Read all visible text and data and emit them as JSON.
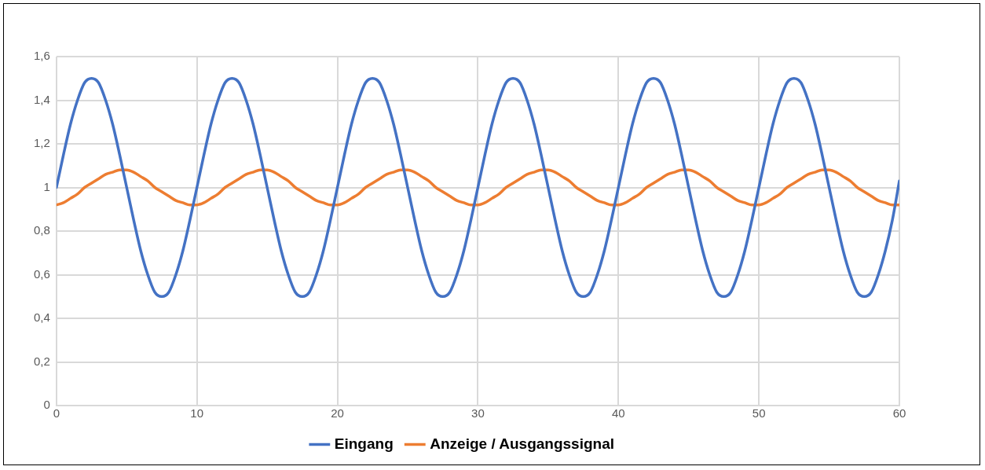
{
  "chart_data": {
    "type": "line",
    "x": [
      0,
      0.5,
      1,
      1.5,
      2,
      2.5,
      3,
      3.5,
      4,
      4.5,
      5,
      5.5,
      6,
      6.5,
      7,
      7.5,
      8,
      8.5,
      9,
      9.5,
      10,
      10.5,
      11,
      11.5,
      12,
      12.5,
      13,
      13.5,
      14,
      14.5,
      15,
      15.5,
      16,
      16.5,
      17,
      17.5,
      18,
      18.5,
      19,
      19.5,
      20,
      20.5,
      21,
      21.5,
      22,
      22.5,
      23,
      23.5,
      24,
      24.5,
      25,
      25.5,
      26,
      26.5,
      27,
      27.5,
      28,
      28.5,
      29,
      29.5,
      30,
      30.5,
      31,
      31.5,
      32,
      32.5,
      33,
      33.5,
      34,
      34.5,
      35,
      35.5,
      36,
      36.5,
      37,
      37.5,
      38,
      38.5,
      39,
      39.5,
      40,
      40.5,
      41,
      41.5,
      42,
      42.5,
      43,
      43.5,
      44,
      44.5,
      45,
      45.5,
      46,
      46.5,
      47,
      47.5,
      48,
      48.5,
      49,
      49.5,
      50,
      50.5,
      51,
      51.5,
      52,
      52.5,
      53,
      53.5,
      54,
      54.5,
      55,
      55.5,
      56,
      56.5,
      57,
      57.5,
      58,
      58.5,
      59,
      59.5,
      60
    ],
    "series": [
      {
        "name": "Eingang",
        "color": "#4472c4",
        "values": [
          1,
          1.15,
          1.29,
          1.4,
          1.48,
          1.5,
          1.48,
          1.4,
          1.29,
          1.15,
          1,
          0.85,
          0.71,
          0.6,
          0.52,
          0.5,
          0.52,
          0.6,
          0.71,
          0.85,
          1,
          1.15,
          1.29,
          1.4,
          1.48,
          1.5,
          1.48,
          1.4,
          1.29,
          1.15,
          1,
          0.85,
          0.71,
          0.6,
          0.52,
          0.5,
          0.52,
          0.6,
          0.71,
          0.85,
          1,
          1.15,
          1.29,
          1.4,
          1.48,
          1.5,
          1.48,
          1.4,
          1.29,
          1.15,
          1,
          0.85,
          0.71,
          0.6,
          0.52,
          0.5,
          0.52,
          0.6,
          0.71,
          0.85,
          1,
          1.15,
          1.29,
          1.4,
          1.48,
          1.5,
          1.48,
          1.4,
          1.29,
          1.15,
          1,
          0.85,
          0.71,
          0.6,
          0.52,
          0.5,
          0.52,
          0.6,
          0.71,
          0.85,
          1,
          1.15,
          1.29,
          1.4,
          1.48,
          1.5,
          1.48,
          1.4,
          1.29,
          1.15,
          1,
          0.85,
          0.71,
          0.6,
          0.52,
          0.5,
          0.52,
          0.6,
          0.71,
          0.85,
          1,
          1.15,
          1.29,
          1.4,
          1.48,
          1.5,
          1.48,
          1.4,
          1.29,
          1.15,
          1,
          0.85,
          0.71,
          0.6,
          0.52,
          0.5,
          0.52,
          0.6,
          0.71,
          0.85,
          1.03
        ]
      },
      {
        "name": "Anzeige / Ausgangssignal",
        "color": "#ed7d31",
        "values": [
          0.92,
          0.93,
          0.95,
          0.97,
          1,
          1.02,
          1.04,
          1.06,
          1.07,
          1.08,
          1.08,
          1.07,
          1.05,
          1.03,
          1,
          0.98,
          0.96,
          0.94,
          0.93,
          0.92,
          0.92,
          0.93,
          0.95,
          0.97,
          1,
          1.02,
          1.04,
          1.06,
          1.07,
          1.08,
          1.08,
          1.07,
          1.05,
          1.03,
          1,
          0.98,
          0.96,
          0.94,
          0.93,
          0.92,
          0.92,
          0.93,
          0.95,
          0.97,
          1,
          1.02,
          1.04,
          1.06,
          1.07,
          1.08,
          1.08,
          1.07,
          1.05,
          1.03,
          1,
          0.98,
          0.96,
          0.94,
          0.93,
          0.92,
          0.92,
          0.93,
          0.95,
          0.97,
          1,
          1.02,
          1.04,
          1.06,
          1.07,
          1.08,
          1.08,
          1.07,
          1.05,
          1.03,
          1,
          0.98,
          0.96,
          0.94,
          0.93,
          0.92,
          0.92,
          0.93,
          0.95,
          0.97,
          1,
          1.02,
          1.04,
          1.06,
          1.07,
          1.08,
          1.08,
          1.07,
          1.05,
          1.03,
          1,
          0.98,
          0.96,
          0.94,
          0.93,
          0.92,
          0.92,
          0.93,
          0.95,
          0.97,
          1,
          1.02,
          1.04,
          1.06,
          1.07,
          1.08,
          1.08,
          1.07,
          1.05,
          1.03,
          1,
          0.98,
          0.96,
          0.94,
          0.93,
          0.92,
          0.92
        ]
      }
    ],
    "xlim": [
      0,
      60
    ],
    "xticks": [
      0,
      10,
      20,
      30,
      40,
      50,
      60
    ],
    "ylim": [
      0,
      1.6
    ],
    "yticks": [
      0,
      {
        "value": 0.2,
        "label": "0,2"
      },
      {
        "value": 0.4,
        "label": "0,4"
      },
      {
        "value": 0.6,
        "label": "0,6"
      },
      {
        "value": 0.8,
        "label": "0,8"
      },
      1,
      {
        "value": 1.2,
        "label": "1,2"
      },
      {
        "value": 1.4,
        "label": "1,4"
      },
      {
        "value": 1.6,
        "label": "1,6"
      }
    ],
    "grid": true,
    "legend": "bottom",
    "marker": "none",
    "line_style": "solid"
  }
}
